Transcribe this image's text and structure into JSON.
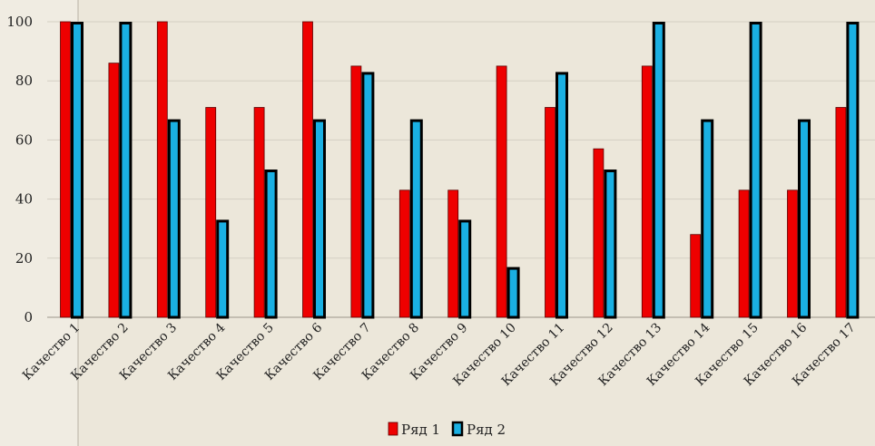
{
  "chart_data": {
    "type": "bar",
    "title": "",
    "xlabel": "",
    "ylabel": "",
    "ylim": [
      0,
      100
    ],
    "yticks": [
      0,
      20,
      40,
      60,
      80,
      100
    ],
    "grid": true,
    "legend_position": "bottom",
    "categories": [
      "Качество 1",
      "Качество 2",
      "Качество 3",
      "Качество 4",
      "Качество 5",
      "Качество 6",
      "Качество 7",
      "Качество 8",
      "Качество 9",
      "Качество 10",
      "Качество 11",
      "Качество 12",
      "Качество 13",
      "Качество 14",
      "Качество 15",
      "Качество 16",
      "Качество 17"
    ],
    "series": [
      {
        "name": "Ряд 1",
        "color": "#ee0000",
        "values": [
          100,
          86,
          100,
          71,
          71,
          100,
          85,
          43,
          43,
          85,
          71,
          57,
          85,
          28,
          43,
          43,
          71
        ]
      },
      {
        "name": "Ряд 2",
        "color": "#1ab0e3",
        "values": [
          100,
          100,
          67,
          33,
          50,
          67,
          83,
          67,
          33,
          17,
          83,
          50,
          100,
          67,
          100,
          67,
          100
        ]
      }
    ]
  }
}
